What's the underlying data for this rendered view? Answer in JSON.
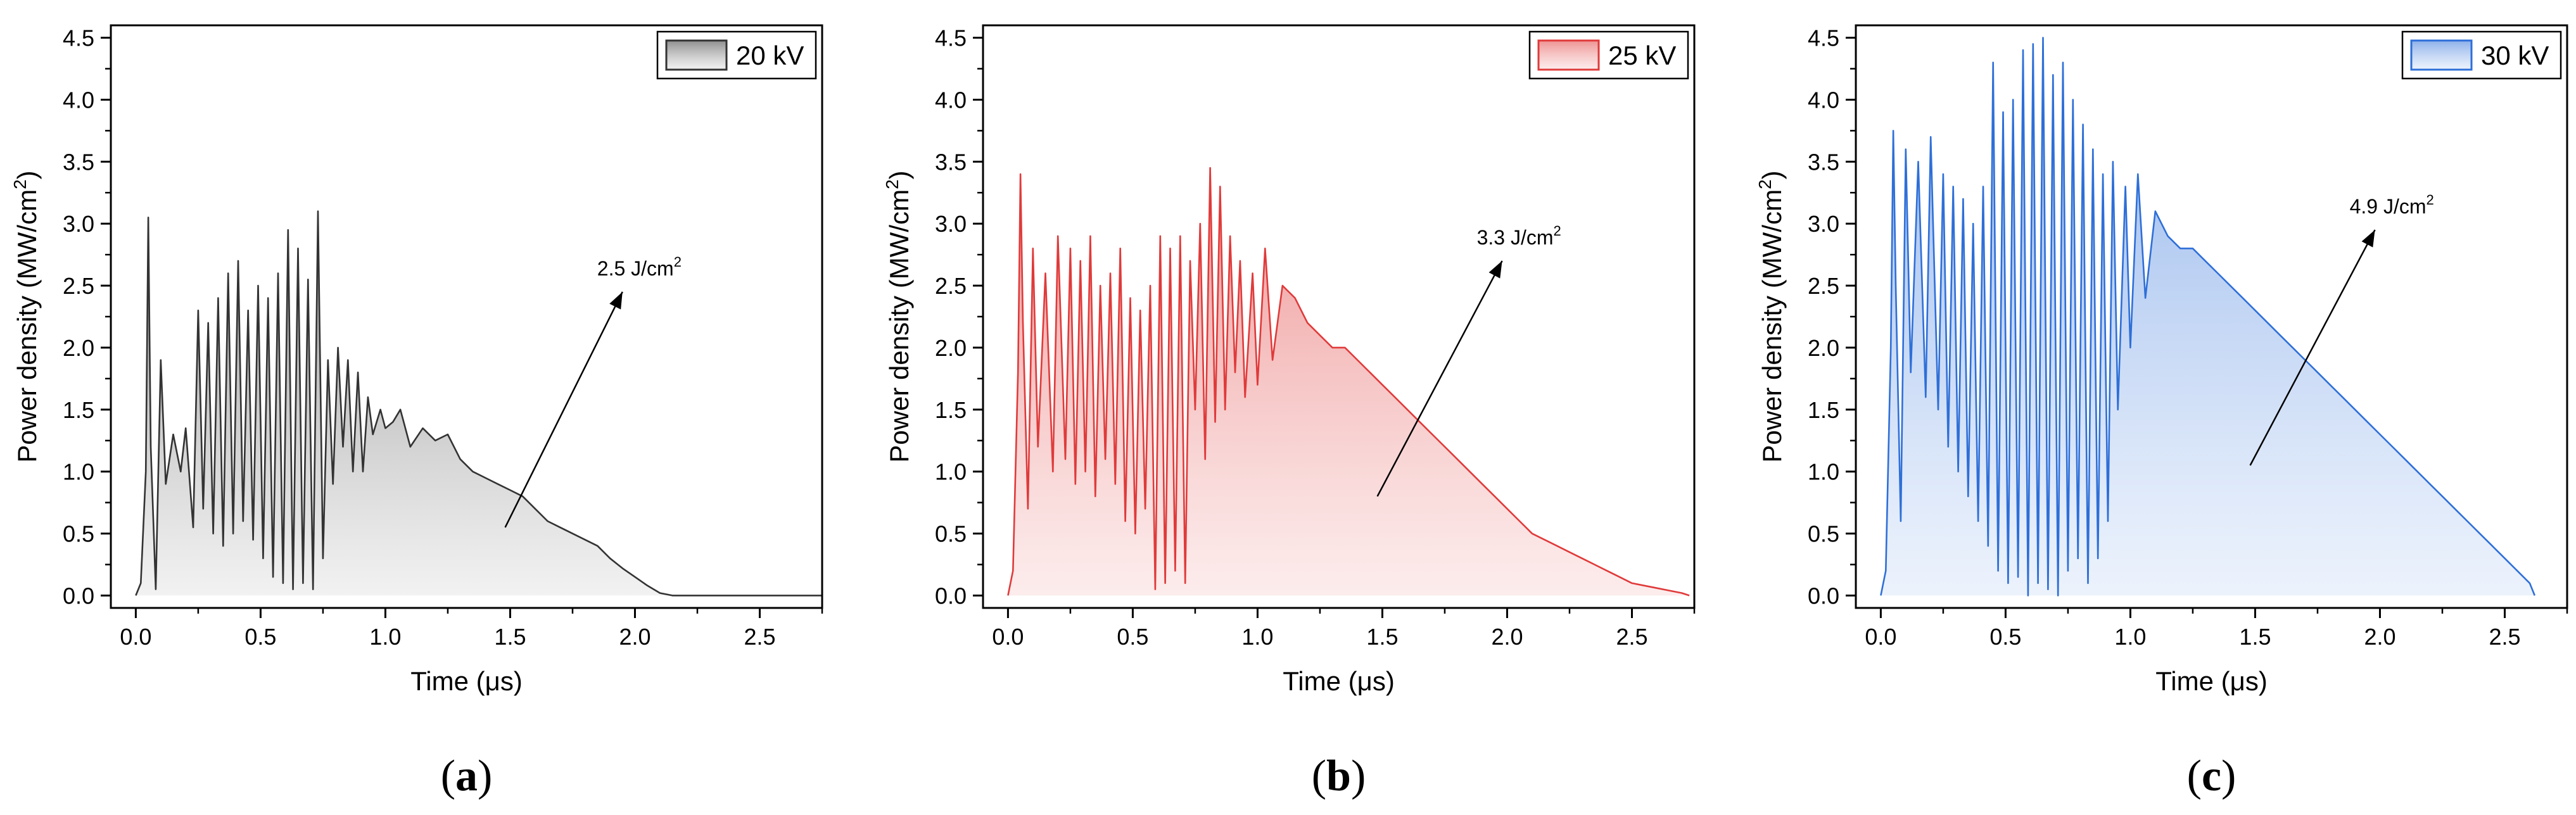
{
  "chart_data": [
    {
      "type": "area",
      "panel_label": "a",
      "xlabel": "Time (μs)",
      "ylabel": "Power density (MW/cm²)",
      "ylabel_parts": [
        "Power density (MW/cm",
        "2",
        ")"
      ],
      "xlim": [
        -0.1,
        2.75
      ],
      "ylim": [
        -0.1,
        4.6
      ],
      "x_ticks": [
        "0.0",
        "0.5",
        "1.0",
        "1.5",
        "2.0",
        "2.5"
      ],
      "x_tick_values": [
        0,
        0.5,
        1.0,
        1.5,
        2.0,
        2.5
      ],
      "y_ticks": [
        "0.0",
        "0.5",
        "1.0",
        "1.5",
        "2.0",
        "2.5",
        "3.0",
        "3.5",
        "4.0",
        "4.5"
      ],
      "y_tick_values": [
        0,
        0.5,
        1.0,
        1.5,
        2.0,
        2.5,
        3.0,
        3.5,
        4.0,
        4.5
      ],
      "legend": "20 kV",
      "legend_position": "top-right",
      "color": "#333333",
      "fill_color": "#d9d9d9",
      "annotation": {
        "text": "2.5 J/cm²",
        "parts": [
          "2.5 J/cm",
          "2"
        ],
        "arrow_from": [
          1.48,
          0.55
        ],
        "arrow_to": [
          1.95,
          2.45
        ]
      },
      "series": {
        "name": "20 kV",
        "x": [
          0,
          0.02,
          0.04,
          0.05,
          0.06,
          0.08,
          0.1,
          0.12,
          0.15,
          0.18,
          0.2,
          0.23,
          0.25,
          0.27,
          0.29,
          0.31,
          0.33,
          0.35,
          0.37,
          0.39,
          0.41,
          0.43,
          0.45,
          0.47,
          0.49,
          0.51,
          0.53,
          0.55,
          0.57,
          0.59,
          0.61,
          0.63,
          0.65,
          0.67,
          0.69,
          0.71,
          0.73,
          0.75,
          0.77,
          0.79,
          0.81,
          0.83,
          0.85,
          0.87,
          0.89,
          0.91,
          0.93,
          0.95,
          0.98,
          1.0,
          1.03,
          1.06,
          1.1,
          1.15,
          1.2,
          1.25,
          1.3,
          1.35,
          1.4,
          1.45,
          1.5,
          1.55,
          1.6,
          1.65,
          1.7,
          1.75,
          1.8,
          1.85,
          1.9,
          1.95,
          2.0,
          2.05,
          2.1,
          2.15,
          2.2,
          2.25,
          2.3,
          2.35,
          2.4,
          2.45,
          2.5,
          2.53,
          2.54,
          2.75
        ],
        "y": [
          0.0,
          0.1,
          1.0,
          3.05,
          1.2,
          0.05,
          1.9,
          0.9,
          1.3,
          1.0,
          1.35,
          0.55,
          2.3,
          0.7,
          2.2,
          0.5,
          2.4,
          0.4,
          2.6,
          0.5,
          2.7,
          0.6,
          2.3,
          0.45,
          2.5,
          0.3,
          2.4,
          0.15,
          2.6,
          0.1,
          2.95,
          0.05,
          2.8,
          0.1,
          2.55,
          0.05,
          3.1,
          0.3,
          1.9,
          0.9,
          2.0,
          1.2,
          1.9,
          1.0,
          1.8,
          1.0,
          1.6,
          1.3,
          1.5,
          1.35,
          1.4,
          1.5,
          1.2,
          1.35,
          1.25,
          1.3,
          1.1,
          1.0,
          0.95,
          0.9,
          0.85,
          0.8,
          0.7,
          0.6,
          0.55,
          0.5,
          0.45,
          0.4,
          0.3,
          0.22,
          0.15,
          0.08,
          0.02,
          0.0,
          0.0,
          0.0,
          0.0,
          0.0,
          0.0,
          0.0,
          0.0,
          0.0,
          0.0,
          0.0
        ]
      }
    },
    {
      "type": "area",
      "panel_label": "b",
      "xlabel": "Time (μs)",
      "ylabel": "Power density (MW/cm²)",
      "ylabel_parts": [
        "Power density (MW/cm",
        "2",
        ")"
      ],
      "xlim": [
        -0.1,
        2.75
      ],
      "ylim": [
        -0.1,
        4.6
      ],
      "x_ticks": [
        "0.0",
        "0.5",
        "1.0",
        "1.5",
        "2.0",
        "2.5"
      ],
      "x_tick_values": [
        0,
        0.5,
        1.0,
        1.5,
        2.0,
        2.5
      ],
      "y_ticks": [
        "0.0",
        "0.5",
        "1.0",
        "1.5",
        "2.0",
        "2.5",
        "3.0",
        "3.5",
        "4.0",
        "4.5"
      ],
      "y_tick_values": [
        0,
        0.5,
        1.0,
        1.5,
        2.0,
        2.5,
        3.0,
        3.5,
        4.0,
        4.5
      ],
      "legend": "25 kV",
      "legend_position": "top-right",
      "color": "#e03a3a",
      "fill_color": "#f8c9c9",
      "annotation": {
        "text": "3.3 J/cm²",
        "parts": [
          "3.3 J/cm",
          "2"
        ],
        "arrow_from": [
          1.48,
          0.8
        ],
        "arrow_to": [
          1.98,
          2.7
        ]
      },
      "series": {
        "name": "25 kV",
        "x": [
          0,
          0.02,
          0.04,
          0.05,
          0.06,
          0.08,
          0.1,
          0.12,
          0.15,
          0.18,
          0.2,
          0.23,
          0.25,
          0.27,
          0.29,
          0.31,
          0.33,
          0.35,
          0.37,
          0.39,
          0.41,
          0.43,
          0.45,
          0.47,
          0.49,
          0.51,
          0.53,
          0.55,
          0.57,
          0.59,
          0.61,
          0.63,
          0.65,
          0.67,
          0.69,
          0.71,
          0.73,
          0.75,
          0.77,
          0.79,
          0.81,
          0.83,
          0.85,
          0.87,
          0.89,
          0.91,
          0.93,
          0.95,
          0.98,
          1.0,
          1.03,
          1.06,
          1.1,
          1.15,
          1.2,
          1.25,
          1.3,
          1.35,
          1.4,
          1.45,
          1.5,
          1.55,
          1.6,
          1.65,
          1.7,
          1.75,
          1.8,
          1.85,
          1.9,
          1.95,
          2.0,
          2.05,
          2.1,
          2.15,
          2.2,
          2.25,
          2.3,
          2.35,
          2.4,
          2.45,
          2.5,
          2.55,
          2.6,
          2.65,
          2.7,
          2.73
        ],
        "y": [
          0.0,
          0.2,
          1.8,
          3.4,
          2.2,
          0.7,
          2.8,
          1.2,
          2.6,
          1.0,
          2.9,
          1.1,
          2.8,
          0.9,
          2.7,
          1.0,
          2.9,
          0.8,
          2.5,
          1.1,
          2.6,
          0.9,
          2.8,
          0.6,
          2.4,
          0.5,
          2.3,
          0.7,
          2.5,
          0.05,
          2.9,
          0.1,
          2.8,
          0.2,
          2.9,
          0.1,
          2.7,
          1.5,
          3.0,
          1.1,
          3.45,
          1.4,
          3.3,
          1.5,
          2.9,
          1.8,
          2.7,
          1.6,
          2.6,
          1.7,
          2.8,
          1.9,
          2.5,
          2.4,
          2.2,
          2.1,
          2.0,
          2.0,
          1.9,
          1.8,
          1.7,
          1.6,
          1.5,
          1.4,
          1.3,
          1.2,
          1.1,
          1.0,
          0.9,
          0.8,
          0.7,
          0.6,
          0.5,
          0.45,
          0.4,
          0.35,
          0.3,
          0.25,
          0.2,
          0.15,
          0.1,
          0.08,
          0.06,
          0.04,
          0.02,
          0.0
        ]
      }
    },
    {
      "type": "area",
      "panel_label": "c",
      "xlabel": "Time (μs)",
      "ylabel": "Power density (MW/cm²)",
      "ylabel_parts": [
        "Power density (MW/cm",
        "2",
        ")"
      ],
      "xlim": [
        -0.1,
        2.75
      ],
      "ylim": [
        -0.1,
        4.6
      ],
      "x_ticks": [
        "0.0",
        "0.5",
        "1.0",
        "1.5",
        "2.0",
        "2.5"
      ],
      "x_tick_values": [
        0,
        0.5,
        1.0,
        1.5,
        2.0,
        2.5
      ],
      "y_ticks": [
        "0.0",
        "0.5",
        "1.0",
        "1.5",
        "2.0",
        "2.5",
        "3.0",
        "3.5",
        "4.0",
        "4.5"
      ],
      "y_tick_values": [
        0,
        0.5,
        1.0,
        1.5,
        2.0,
        2.5,
        3.0,
        3.5,
        4.0,
        4.5
      ],
      "legend": "30 kV",
      "legend_position": "top-right",
      "color": "#2e6fd8",
      "fill_color": "#c9dbf7",
      "annotation": {
        "text": "4.9 J/cm²",
        "parts": [
          "4.9 J/cm",
          "2"
        ],
        "arrow_from": [
          1.48,
          1.05
        ],
        "arrow_to": [
          1.98,
          2.95
        ]
      },
      "series": {
        "name": "30 kV",
        "x": [
          0,
          0.02,
          0.04,
          0.05,
          0.06,
          0.08,
          0.1,
          0.12,
          0.15,
          0.18,
          0.2,
          0.23,
          0.25,
          0.27,
          0.29,
          0.31,
          0.33,
          0.35,
          0.37,
          0.39,
          0.41,
          0.43,
          0.45,
          0.47,
          0.49,
          0.51,
          0.53,
          0.55,
          0.57,
          0.59,
          0.61,
          0.63,
          0.65,
          0.67,
          0.69,
          0.71,
          0.73,
          0.75,
          0.77,
          0.79,
          0.81,
          0.83,
          0.85,
          0.87,
          0.89,
          0.91,
          0.93,
          0.95,
          0.98,
          1.0,
          1.03,
          1.06,
          1.1,
          1.15,
          1.2,
          1.25,
          1.3,
          1.35,
          1.4,
          1.45,
          1.5,
          1.55,
          1.6,
          1.65,
          1.7,
          1.75,
          1.8,
          1.85,
          1.9,
          1.95,
          2.0,
          2.05,
          2.1,
          2.15,
          2.2,
          2.25,
          2.3,
          2.35,
          2.4,
          2.45,
          2.5,
          2.55,
          2.6,
          2.62
        ],
        "y": [
          0.0,
          0.2,
          2.0,
          3.75,
          2.5,
          0.6,
          3.6,
          1.8,
          3.5,
          1.6,
          3.7,
          1.5,
          3.4,
          1.2,
          3.3,
          1.0,
          3.2,
          0.8,
          3.0,
          0.6,
          3.3,
          0.4,
          4.3,
          0.2,
          3.9,
          0.1,
          4.0,
          0.15,
          4.4,
          0.0,
          4.45,
          0.1,
          4.5,
          0.05,
          4.2,
          0.0,
          4.3,
          0.2,
          4.0,
          0.3,
          3.8,
          0.1,
          3.6,
          0.3,
          3.4,
          0.6,
          3.5,
          1.5,
          3.3,
          2.0,
          3.4,
          2.4,
          3.1,
          2.9,
          2.8,
          2.8,
          2.7,
          2.6,
          2.5,
          2.4,
          2.3,
          2.2,
          2.1,
          2.0,
          1.9,
          1.8,
          1.7,
          1.6,
          1.5,
          1.4,
          1.3,
          1.2,
          1.1,
          1.0,
          0.9,
          0.8,
          0.7,
          0.6,
          0.5,
          0.4,
          0.3,
          0.2,
          0.1,
          0.0
        ]
      }
    }
  ]
}
